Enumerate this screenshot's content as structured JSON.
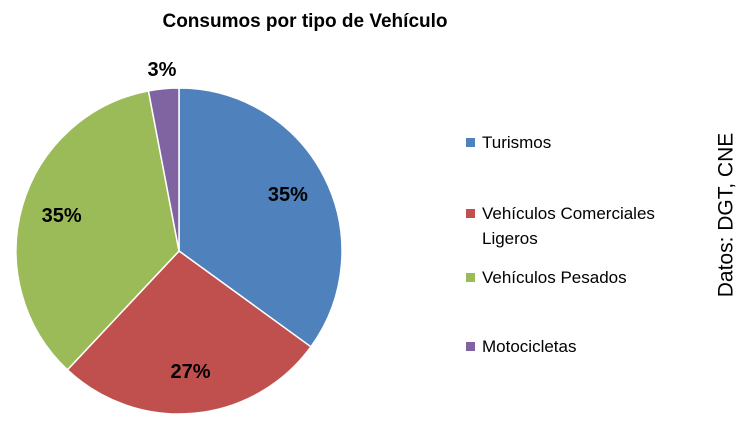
{
  "chart_data": {
    "type": "pie",
    "title": "Consumos por tipo de Vehículo",
    "categories": [
      "Turismos",
      "Vehículos Comerciales Ligeros",
      "Vehículos Pesados",
      "Motocicletas"
    ],
    "values": [
      35,
      27,
      35,
      3
    ],
    "value_labels": [
      "35%",
      "27%",
      "35%",
      "3%"
    ],
    "colors": [
      "#4f81bd",
      "#c0504d",
      "#9bbb59",
      "#8064a2"
    ],
    "annotation": "Datos: DGT, CNE"
  }
}
